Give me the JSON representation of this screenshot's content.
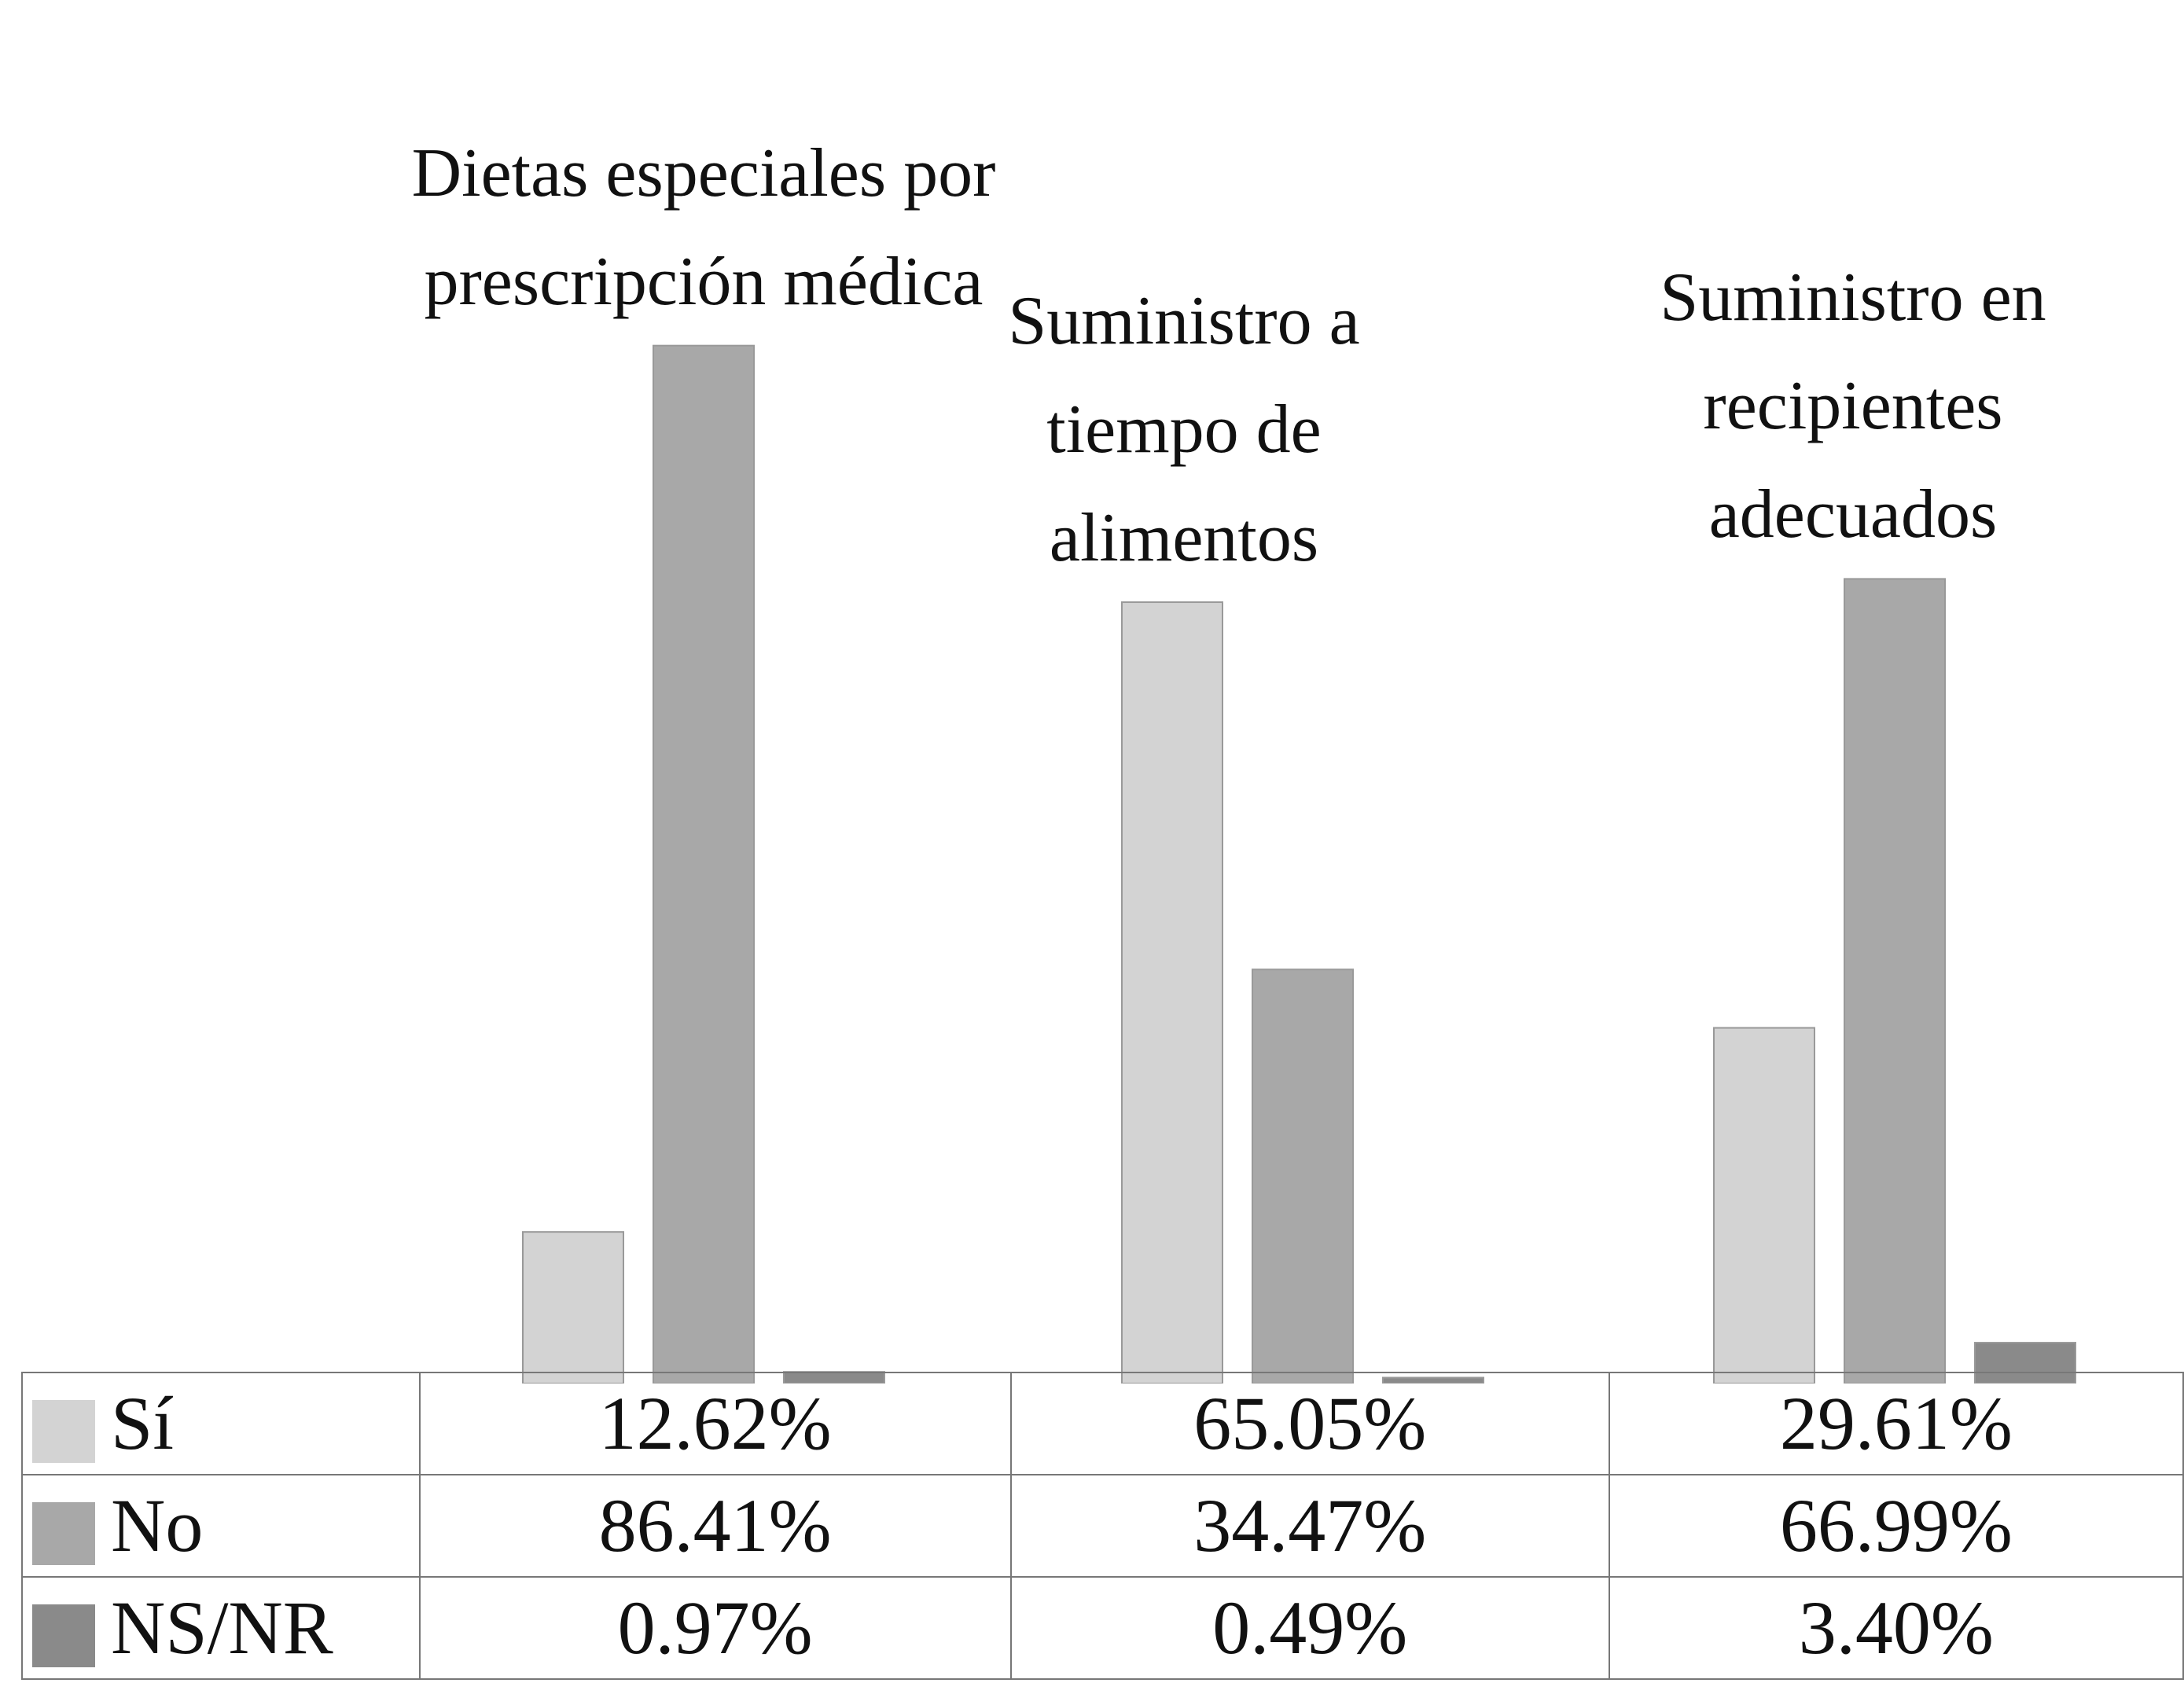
{
  "chart_data": {
    "type": "bar",
    "categories": [
      "Dietas especiales por prescripción médica",
      "Suministro a tiempo de alimentos",
      "Suministro en recipientes adecuados"
    ],
    "series": [
      {
        "name": "Sí",
        "color": "#d3d3d3",
        "values": [
          12.62,
          65.05,
          29.61
        ],
        "value_labels": [
          "12.62%",
          "65.05%",
          "29.61%"
        ]
      },
      {
        "name": "No",
        "color": "#a8a8a8",
        "values": [
          86.41,
          34.47,
          66.99
        ],
        "value_labels": [
          "86.41%",
          "34.47%",
          "66.99%"
        ]
      },
      {
        "name": "NS/NR",
        "color": "#8a8a8a",
        "values": [
          0.97,
          0.49,
          3.4
        ],
        "value_labels": [
          "0.97%",
          "0.49%",
          "3.40%"
        ]
      }
    ]
  }
}
